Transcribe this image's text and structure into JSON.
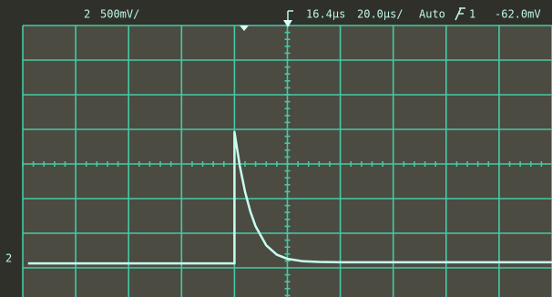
{
  "status": {
    "channel": "2",
    "scale": "500mV/",
    "delay": "16.4µs",
    "timebase": "20.0µs/",
    "mode": "Auto",
    "trigger_source": "1",
    "trigger_level": "-62.0mV",
    "ground_marker": "2"
  },
  "chart_data": {
    "type": "line",
    "x": [
      0.1,
      4.0,
      4.0,
      4.1,
      4.2,
      4.3,
      4.4,
      4.6,
      4.8,
      5.0,
      5.3,
      5.6,
      6.0,
      10.0
    ],
    "values": [
      1.13,
      1.13,
      4.92,
      3.95,
      3.2,
      2.63,
      2.2,
      1.65,
      1.38,
      1.26,
      1.19,
      1.17,
      1.16,
      1.16
    ],
    "color": "#c8fff0",
    "xlim": [
      0,
      10
    ],
    "ylim": [
      0,
      8
    ],
    "grid": true
  }
}
